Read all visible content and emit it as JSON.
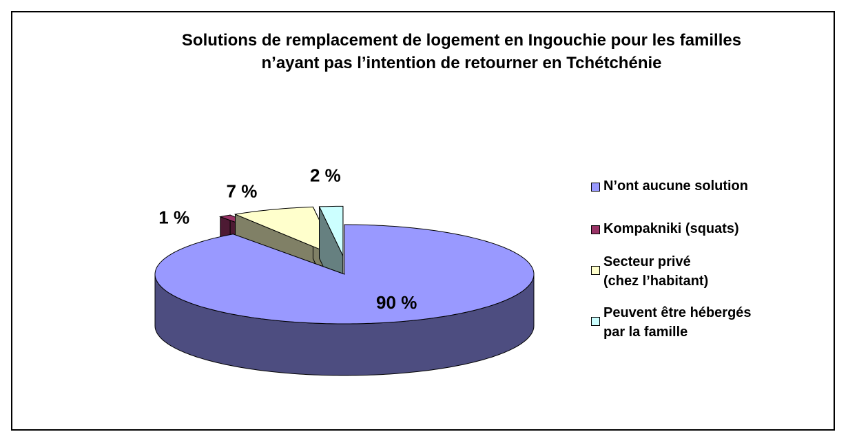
{
  "chart_data": {
    "type": "pie3d",
    "title": "Solutions de remplacement de logement en Ingouchie pour les familles\nn’ayant pas l’intention de retourner en Tchétchénie",
    "categories": [
      "N’ont aucune solution",
      "Kompakniki (squats)",
      "Secteur privé\n(chez l’habitant)",
      "Peuvent être hébergés\npar la famille"
    ],
    "values": [
      90,
      1,
      7,
      2
    ],
    "value_labels": [
      "90 %",
      "1 %",
      "7 %",
      "2 %"
    ],
    "colors": [
      "#9999ff",
      "#993366",
      "#ffffcc",
      "#ccffff"
    ],
    "legend": "right"
  }
}
